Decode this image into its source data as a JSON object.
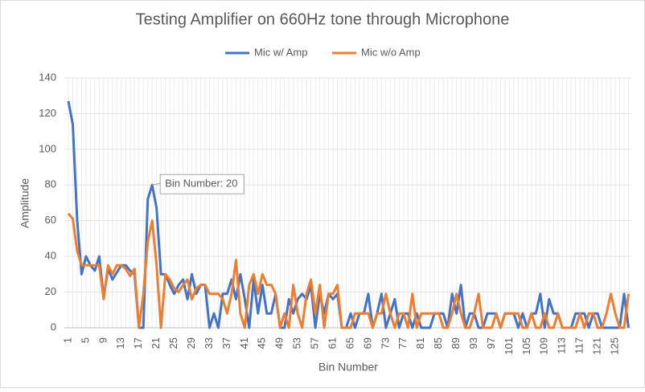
{
  "chart_data": {
    "type": "line",
    "title": "Testing Amplifier on 660Hz tone through Microphone",
    "x_label": "Bin Number",
    "y_label": "Amplitude",
    "annotation": "Bin Number: 20",
    "categories": [
      1,
      null,
      null,
      null,
      5,
      null,
      null,
      null,
      9,
      null,
      null,
      null,
      13,
      null,
      null,
      null,
      17,
      null,
      null,
      null,
      21,
      null,
      null,
      null,
      25,
      null,
      null,
      null,
      29,
      null,
      null,
      null,
      33,
      null,
      null,
      null,
      37,
      null,
      null,
      null,
      41,
      null,
      null,
      null,
      45,
      null,
      null,
      null,
      49,
      null,
      null,
      null,
      53,
      null,
      null,
      null,
      57,
      null,
      null,
      null,
      61,
      null,
      null,
      null,
      65,
      null,
      null,
      null,
      69,
      null,
      null,
      null,
      73,
      null,
      null,
      null,
      77,
      null,
      null,
      null,
      81,
      null,
      null,
      null,
      85,
      null,
      null,
      null,
      89,
      null,
      null,
      null,
      93,
      null,
      null,
      null,
      97,
      null,
      null,
      null,
      101,
      null,
      null,
      null,
      105,
      null,
      null,
      null,
      109,
      null,
      null,
      null,
      113,
      null,
      null,
      null,
      117,
      null,
      null,
      null,
      121,
      null,
      null,
      null,
      125,
      null,
      null,
      null
    ],
    "series": [
      {
        "name": "Mic w/ Amp",
        "color": "#4472c4",
        "values": [
          127,
          114,
          60,
          30,
          40,
          35,
          32,
          40,
          17,
          33,
          27,
          31,
          35,
          35,
          32,
          30,
          0,
          0,
          72,
          80,
          67,
          30,
          30,
          24,
          19,
          24,
          27,
          16,
          30,
          19,
          24,
          24,
          0,
          8,
          0,
          19,
          19,
          27,
          16,
          30,
          16,
          0,
          27,
          8,
          24,
          8,
          8,
          19,
          0,
          0,
          16,
          8,
          16,
          19,
          16,
          24,
          0,
          19,
          8,
          19,
          16,
          19,
          0,
          0,
          8,
          0,
          8,
          8,
          19,
          0,
          8,
          19,
          0,
          8,
          16,
          0,
          8,
          8,
          0,
          8,
          0,
          0,
          0,
          8,
          8,
          8,
          0,
          19,
          8,
          24,
          0,
          8,
          8,
          0,
          0,
          8,
          8,
          8,
          0,
          8,
          8,
          8,
          0,
          8,
          0,
          8,
          8,
          19,
          0,
          16,
          8,
          8,
          0,
          0,
          0,
          8,
          8,
          8,
          0,
          8,
          8,
          0,
          0,
          0,
          0,
          0,
          19,
          0
        ]
      },
      {
        "name": "Mic w/o Amp",
        "color": "#ed7d31",
        "values": [
          64,
          61,
          43,
          35,
          35,
          35,
          35,
          35,
          16,
          35,
          30,
          35,
          35,
          33,
          29,
          33,
          0,
          19,
          48,
          60,
          35,
          0,
          30,
          27,
          22,
          20,
          24,
          27,
          16,
          22,
          24,
          24,
          19,
          19,
          19,
          16,
          8,
          19,
          38,
          8,
          0,
          24,
          30,
          19,
          30,
          24,
          24,
          19,
          0,
          8,
          0,
          24,
          8,
          0,
          19,
          27,
          8,
          24,
          0,
          19,
          19,
          24,
          0,
          0,
          0,
          8,
          8,
          8,
          8,
          0,
          8,
          8,
          19,
          8,
          0,
          8,
          8,
          0,
          19,
          0,
          8,
          8,
          8,
          8,
          8,
          0,
          0,
          8,
          19,
          8,
          0,
          0,
          8,
          19,
          0,
          0,
          0,
          8,
          0,
          8,
          8,
          8,
          8,
          0,
          0,
          8,
          0,
          0,
          8,
          0,
          0,
          8,
          0,
          0,
          0,
          0,
          8,
          0,
          8,
          8,
          0,
          0,
          8,
          19,
          8,
          0,
          0,
          19
        ]
      }
    ],
    "ylim": [
      0,
      140
    ],
    "yticks": [
      0,
      20,
      40,
      60,
      80,
      100,
      120,
      140
    ],
    "grid": true
  }
}
